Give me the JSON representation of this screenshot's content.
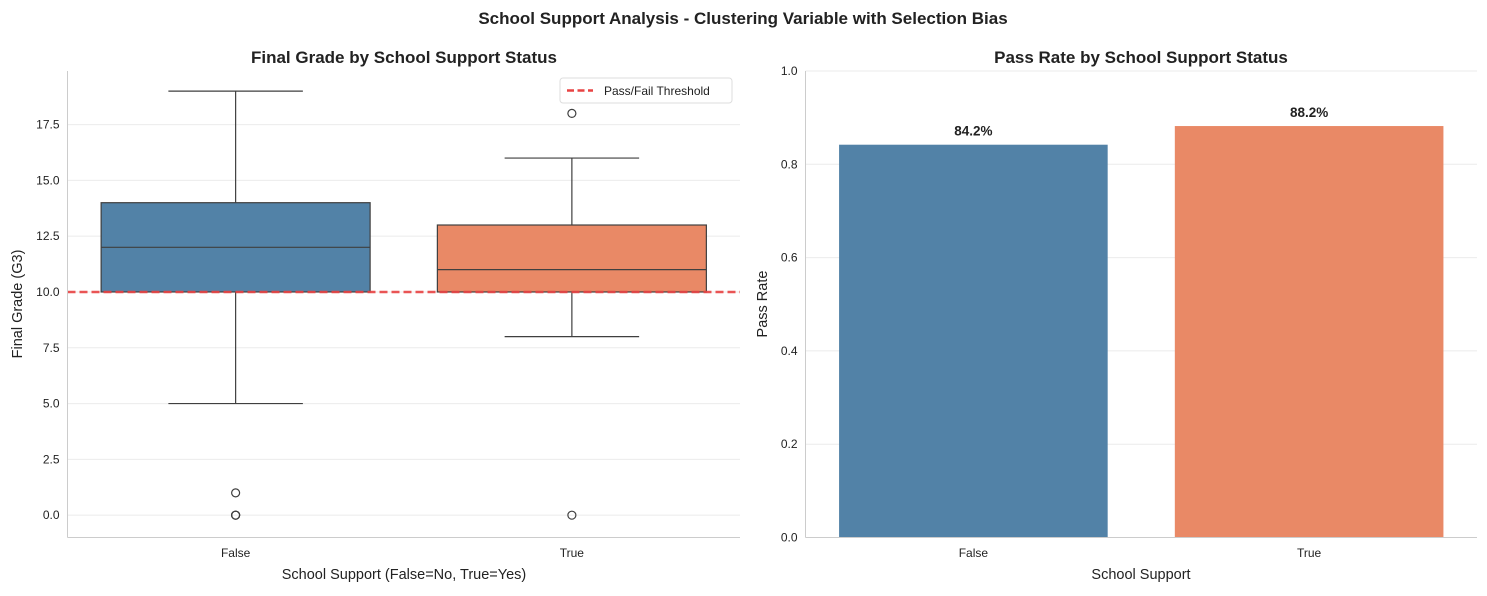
{
  "figure": {
    "suptitle": "School Support Analysis - Clustering Variable with Selection Bias"
  },
  "colors": {
    "false": "#5282a7",
    "true": "#e98966",
    "threshold": "#e84343"
  },
  "chart_data": [
    {
      "type": "box",
      "title": "Final Grade by School Support Status",
      "xlabel": "School Support (False=No, True=Yes)",
      "ylabel": "Final Grade (G3)",
      "ylim": [
        -1,
        19.9
      ],
      "yticks": [
        "0.0",
        "2.5",
        "5.0",
        "7.5",
        "10.0",
        "12.5",
        "15.0",
        "17.5"
      ],
      "grid": "y",
      "categories": [
        "False",
        "True"
      ],
      "boxes": [
        {
          "category": "False",
          "whisker_low": 5,
          "q1": 10,
          "median": 12,
          "q3": 14,
          "whisker_high": 19,
          "outliers": [
            1,
            0,
            0,
            0
          ]
        },
        {
          "category": "True",
          "whisker_low": 8,
          "q1": 10,
          "median": 11,
          "q3": 13,
          "whisker_high": 16,
          "outliers": [
            18,
            0
          ]
        }
      ],
      "threshold": {
        "value": 10,
        "label": "Pass/Fail Threshold"
      },
      "legend_position": "upper-right"
    },
    {
      "type": "bar",
      "title": "Pass Rate by School Support Status",
      "xlabel": "School Support",
      "ylabel": "Pass Rate",
      "ylim": [
        0,
        1.0
      ],
      "yticks": [
        "0.0",
        "0.2",
        "0.4",
        "0.6",
        "0.8",
        "1.0"
      ],
      "grid": "y",
      "categories": [
        "False",
        "True"
      ],
      "values": [
        0.842,
        0.882
      ],
      "value_labels": [
        "84.2%",
        "88.2%"
      ]
    }
  ]
}
